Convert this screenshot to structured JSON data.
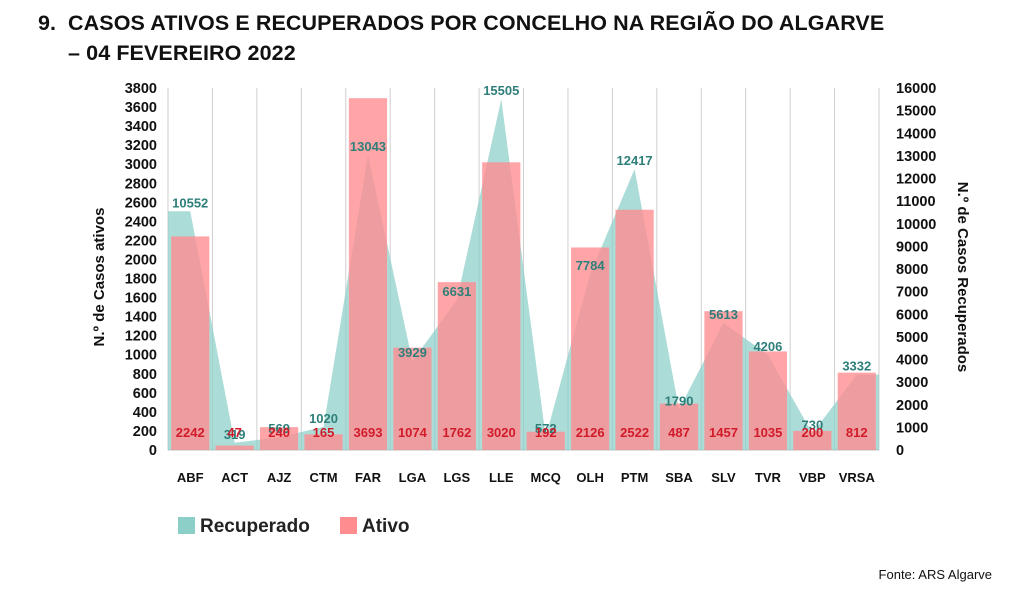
{
  "title": {
    "number": "9.",
    "line1": "CASOS ATIVOS E RECUPERADOS POR CONCELHO NA REGIÃO DO ALGARVE",
    "line2": "– 04 FEVEREIRO 2022"
  },
  "source": "Fonte: ARS Algarve",
  "chart_data": {
    "type": "bar",
    "categories": [
      "ABF",
      "ACT",
      "AJZ",
      "CTM",
      "FAR",
      "LGA",
      "LGS",
      "LLE",
      "MCQ",
      "OLH",
      "PTM",
      "SBA",
      "SLV",
      "TVR",
      "VBP",
      "VRSA"
    ],
    "series": [
      {
        "name": "Ativo",
        "type": "bar",
        "axis": "left",
        "color": "#ff8c8f",
        "values": [
          2242,
          47,
          240,
          165,
          3693,
          1074,
          1762,
          3020,
          192,
          2126,
          2522,
          487,
          1457,
          1035,
          200,
          812
        ]
      },
      {
        "name": "Recuperado",
        "type": "area",
        "axis": "right",
        "color": "#8ccfc8",
        "values": [
          10552,
          319,
          569,
          1020,
          13043,
          3929,
          6631,
          15505,
          572,
          7784,
          12417,
          1790,
          5613,
          4206,
          730,
          3332
        ]
      }
    ],
    "ylabel": "N.º de Casos ativos",
    "y2label": "N.º de Casos Recuperados",
    "ylim": [
      0,
      3800
    ],
    "y2lim": [
      0,
      16000
    ],
    "yticks": [
      "0",
      "200",
      "400",
      "600",
      "800",
      "1000",
      "1200",
      "1400",
      "1600",
      "1800",
      "2000",
      "2200",
      "2400",
      "2600",
      "2800",
      "3000",
      "3200",
      "3400",
      "3600",
      "3800"
    ],
    "y2ticks": [
      "0",
      "1000",
      "2000",
      "3000",
      "4000",
      "5000",
      "6000",
      "7000",
      "8000",
      "9000",
      "10000",
      "11000",
      "12000",
      "13000",
      "14000",
      "15000",
      "16000"
    ],
    "grid": "vertical",
    "legend": "bottom-left",
    "label_colors": {
      "Ativo": "#d11b2a",
      "Recuperado": "#2e7f7a"
    }
  }
}
